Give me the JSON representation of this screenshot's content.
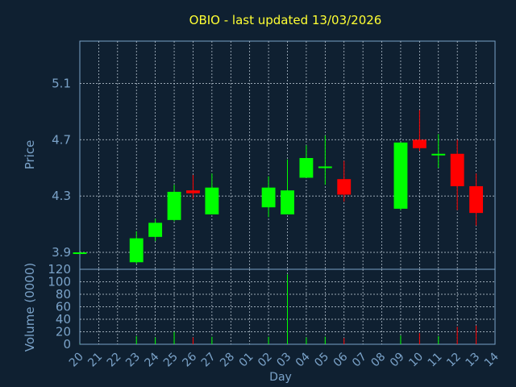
{
  "chart_data": [
    {
      "type": "candlestick",
      "title": "OBIO - last updated 13/03/2026",
      "ylabel": "Price",
      "ylim": [
        3.78,
        5.4
      ],
      "yticks": [
        "3.9",
        "4.3",
        "4.7",
        "5.1"
      ],
      "grid": true,
      "up_color": "#00ff00",
      "down_color": "#ff0000",
      "candles": [
        {
          "day": "20",
          "open": 3.9,
          "high": 3.9,
          "low": 3.9,
          "close": 3.9
        },
        {
          "day": "23",
          "open": 3.83,
          "high": 4.05,
          "low": 3.82,
          "close": 4.0
        },
        {
          "day": "24",
          "open": 4.01,
          "high": 4.14,
          "low": 3.98,
          "close": 4.11
        },
        {
          "day": "25",
          "open": 4.13,
          "high": 4.38,
          "low": 4.12,
          "close": 4.33
        },
        {
          "day": "26",
          "open": 4.34,
          "high": 4.45,
          "low": 4.28,
          "close": 4.32
        },
        {
          "day": "27",
          "open": 4.17,
          "high": 4.46,
          "low": 4.17,
          "close": 4.36
        },
        {
          "day": "02",
          "open": 4.22,
          "high": 4.44,
          "low": 4.15,
          "close": 4.36
        },
        {
          "day": "03",
          "open": 4.17,
          "high": 4.56,
          "low": 4.17,
          "close": 4.34
        },
        {
          "day": "04",
          "open": 4.43,
          "high": 4.66,
          "low": 4.43,
          "close": 4.57
        },
        {
          "day": "05",
          "open": 4.5,
          "high": 4.73,
          "low": 4.38,
          "close": 4.51
        },
        {
          "day": "06",
          "open": 4.42,
          "high": 4.55,
          "low": 4.26,
          "close": 4.31
        },
        {
          "day": "09",
          "open": 4.21,
          "high": 4.68,
          "low": 4.2,
          "close": 4.68
        },
        {
          "day": "10",
          "open": 4.7,
          "high": 4.91,
          "low": 4.62,
          "close": 4.64
        },
        {
          "day": "11",
          "open": 4.6,
          "high": 4.74,
          "low": 4.5,
          "close": 4.6
        },
        {
          "day": "12",
          "open": 4.6,
          "high": 4.7,
          "low": 4.2,
          "close": 4.37
        },
        {
          "day": "13",
          "open": 4.37,
          "high": 4.46,
          "low": 4.09,
          "close": 4.18
        }
      ]
    },
    {
      "type": "bar",
      "ylabel": "Volume (0000)",
      "xlabel": "Day",
      "ylim": [
        0,
        120
      ],
      "yticks": [
        "0",
        "20",
        "40",
        "60",
        "80",
        "100",
        "120"
      ],
      "categories": [
        "20",
        "21",
        "22",
        "23",
        "24",
        "25",
        "26",
        "27",
        "28",
        "01",
        "02",
        "03",
        "04",
        "05",
        "06",
        "07",
        "08",
        "09",
        "10",
        "11",
        "12",
        "13",
        "14"
      ],
      "values": [
        0.5,
        0,
        0,
        13,
        11,
        20,
        11,
        12,
        0,
        0,
        12,
        112,
        11,
        12,
        10,
        0,
        0,
        14,
        18,
        13,
        28,
        30,
        0
      ],
      "colors": [
        "#00ff00",
        "",
        "",
        "#00ff00",
        "#00ff00",
        "#00ff00",
        "#ff0000",
        "#00ff00",
        "",
        "",
        "#00ff00",
        "#00ff00",
        "#00ff00",
        "#00ff00",
        "#ff0000",
        "",
        "",
        "#00ff00",
        "#ff0000",
        "#00ff00",
        "#ff0000",
        "#ff0000",
        ""
      ]
    }
  ]
}
